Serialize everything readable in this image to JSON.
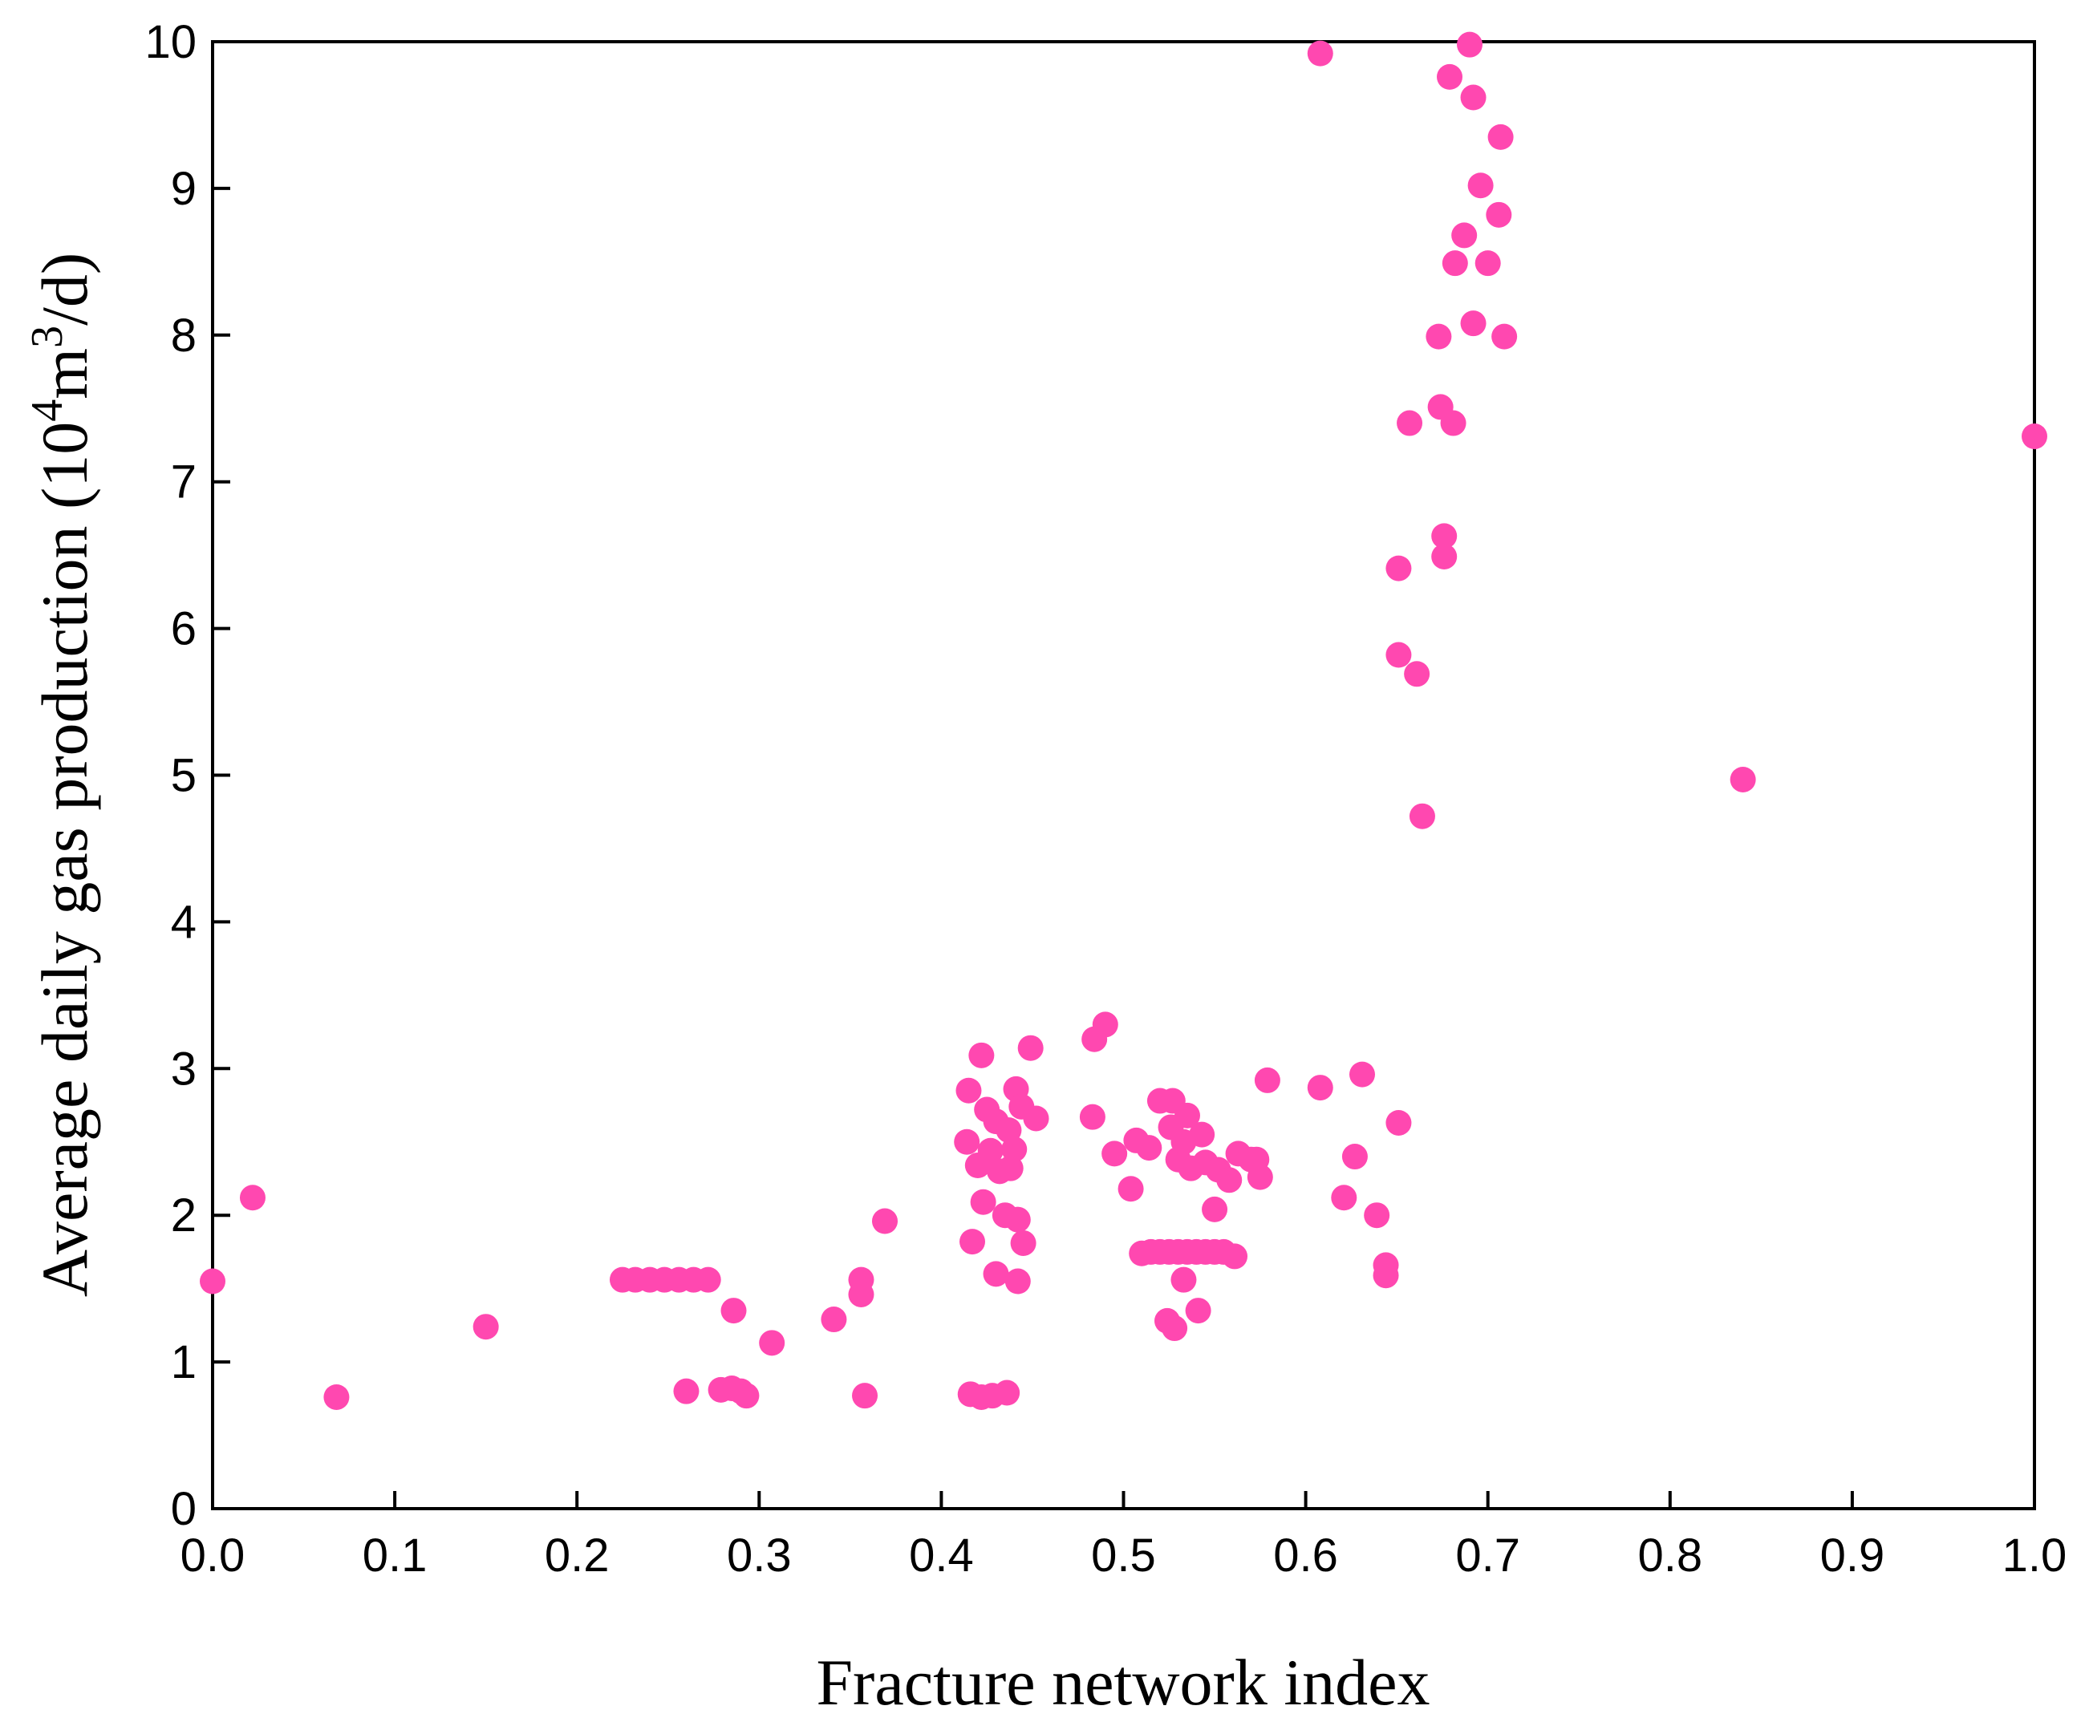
{
  "chart_data": {
    "type": "scatter",
    "title": "",
    "xlabel": "Fracture network index",
    "ylabel_prefix": "Average daily gas production (10",
    "ylabel_sup1": "4",
    "ylabel_mid": "m",
    "ylabel_sup2": "3",
    "ylabel_suffix": "/d)",
    "xlim": [
      0,
      1
    ],
    "ylim": [
      0,
      10
    ],
    "x_ticks": [
      "0.0",
      "0.1",
      "0.2",
      "0.3",
      "0.4",
      "0.5",
      "0.6",
      "0.7",
      "0.8",
      "0.9",
      "1.0"
    ],
    "y_ticks": [
      "0",
      "1",
      "2",
      "3",
      "4",
      "5",
      "6",
      "7",
      "8",
      "9",
      "10"
    ],
    "grid": false,
    "marker_color": "#FF48B0",
    "series": [
      {
        "points": [
          [
            0.0,
            1.55
          ],
          [
            0.022,
            2.12
          ],
          [
            0.068,
            0.76
          ],
          [
            0.15,
            1.24
          ],
          [
            0.225,
            1.56
          ],
          [
            0.232,
            1.56
          ],
          [
            0.24,
            1.56
          ],
          [
            0.248,
            1.56
          ],
          [
            0.256,
            1.56
          ],
          [
            0.264,
            1.56
          ],
          [
            0.272,
            1.56
          ],
          [
            0.26,
            0.8
          ],
          [
            0.279,
            0.81
          ],
          [
            0.285,
            0.82
          ],
          [
            0.29,
            0.8
          ],
          [
            0.293,
            0.77
          ],
          [
            0.286,
            1.35
          ],
          [
            0.307,
            1.13
          ],
          [
            0.341,
            1.29
          ],
          [
            0.356,
            1.56
          ],
          [
            0.356,
            1.46
          ],
          [
            0.358,
            0.77
          ],
          [
            0.369,
            1.96
          ],
          [
            0.414,
            2.5
          ],
          [
            0.415,
            2.85
          ],
          [
            0.417,
            1.82
          ],
          [
            0.42,
            2.34
          ],
          [
            0.422,
            3.09
          ],
          [
            0.423,
            2.09
          ],
          [
            0.425,
            2.72
          ],
          [
            0.427,
            2.44
          ],
          [
            0.43,
            1.6
          ],
          [
            0.43,
            2.64
          ],
          [
            0.432,
            2.3
          ],
          [
            0.435,
            2.0
          ],
          [
            0.437,
            2.58
          ],
          [
            0.438,
            2.32
          ],
          [
            0.44,
            2.45
          ],
          [
            0.441,
            2.86
          ],
          [
            0.442,
            1.97
          ],
          [
            0.442,
            1.55
          ],
          [
            0.444,
            2.74
          ],
          [
            0.445,
            1.81
          ],
          [
            0.449,
            3.14
          ],
          [
            0.452,
            2.66
          ],
          [
            0.416,
            0.78
          ],
          [
            0.422,
            0.76
          ],
          [
            0.428,
            0.77
          ],
          [
            0.436,
            0.79
          ],
          [
            0.483,
            2.67
          ],
          [
            0.484,
            3.2
          ],
          [
            0.49,
            3.3
          ],
          [
            0.495,
            2.42
          ],
          [
            0.504,
            2.18
          ],
          [
            0.507,
            2.51
          ],
          [
            0.51,
            1.74
          ],
          [
            0.514,
            2.46
          ],
          [
            0.52,
            2.78
          ],
          [
            0.524,
            1.28
          ],
          [
            0.526,
            2.6
          ],
          [
            0.527,
            2.78
          ],
          [
            0.528,
            1.23
          ],
          [
            0.53,
            2.38
          ],
          [
            0.533,
            2.5
          ],
          [
            0.533,
            1.56
          ],
          [
            0.535,
            2.68
          ],
          [
            0.537,
            2.32
          ],
          [
            0.541,
            1.35
          ],
          [
            0.543,
            2.55
          ],
          [
            0.545,
            2.36
          ],
          [
            0.55,
            2.04
          ],
          [
            0.552,
            2.31
          ],
          [
            0.558,
            2.24
          ],
          [
            0.561,
            1.72
          ],
          [
            0.563,
            2.42
          ],
          [
            0.57,
            2.38
          ],
          [
            0.573,
            2.38
          ],
          [
            0.575,
            2.26
          ],
          [
            0.579,
            2.92
          ],
          [
            0.515,
            1.75
          ],
          [
            0.52,
            1.75
          ],
          [
            0.525,
            1.75
          ],
          [
            0.53,
            1.75
          ],
          [
            0.535,
            1.75
          ],
          [
            0.54,
            1.75
          ],
          [
            0.545,
            1.75
          ],
          [
            0.55,
            1.75
          ],
          [
            0.555,
            1.75
          ],
          [
            0.608,
            2.87
          ],
          [
            0.621,
            2.12
          ],
          [
            0.627,
            2.4
          ],
          [
            0.631,
            2.96
          ],
          [
            0.639,
            2.0
          ],
          [
            0.644,
            1.66
          ],
          [
            0.644,
            1.59
          ],
          [
            0.651,
            2.63
          ],
          [
            0.608,
            9.92
          ],
          [
            0.651,
            6.41
          ],
          [
            0.651,
            5.82
          ],
          [
            0.661,
            5.69
          ],
          [
            0.657,
            7.4
          ],
          [
            0.664,
            4.72
          ],
          [
            0.673,
            7.99
          ],
          [
            0.674,
            7.51
          ],
          [
            0.676,
            6.63
          ],
          [
            0.676,
            6.49
          ],
          [
            0.679,
            9.76
          ],
          [
            0.681,
            7.4
          ],
          [
            0.682,
            8.49
          ],
          [
            0.687,
            8.68
          ],
          [
            0.69,
            9.98
          ],
          [
            0.692,
            9.62
          ],
          [
            0.692,
            8.08
          ],
          [
            0.696,
            9.02
          ],
          [
            0.7,
            8.49
          ],
          [
            0.706,
            8.82
          ],
          [
            0.707,
            9.35
          ],
          [
            0.709,
            7.99
          ],
          [
            0.84,
            4.97
          ],
          [
            1.0,
            7.31
          ]
        ]
      }
    ]
  }
}
